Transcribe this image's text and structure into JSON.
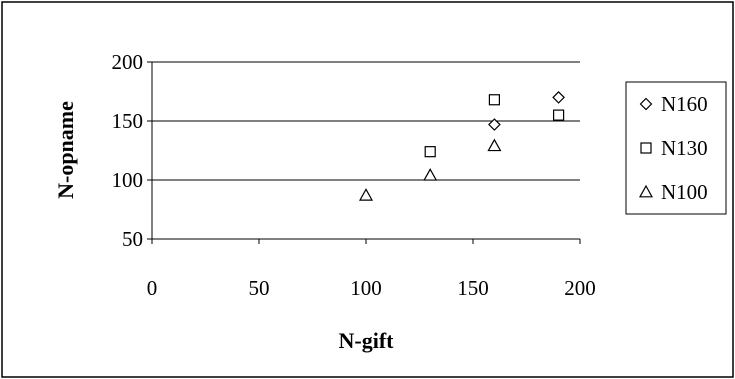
{
  "chart_data": {
    "type": "scatter",
    "title": "",
    "xlabel": "N-gift",
    "ylabel": "N-opname",
    "xlim": [
      0,
      200
    ],
    "ylim": [
      50,
      200
    ],
    "x_ticks": [
      "0",
      "50",
      "100",
      "150",
      "200"
    ],
    "y_ticks": [
      "50",
      "100",
      "150",
      "200"
    ],
    "grid": "horizontal",
    "legend_position": "right",
    "series": [
      {
        "name": "N160",
        "marker": "diamond",
        "points": [
          [
            160,
            147
          ],
          [
            190,
            170
          ]
        ]
      },
      {
        "name": "N130",
        "marker": "square",
        "points": [
          [
            130,
            124
          ],
          [
            160,
            168
          ],
          [
            190,
            155
          ]
        ]
      },
      {
        "name": "N100",
        "marker": "triangle",
        "points": [
          [
            100,
            87
          ],
          [
            130,
            104
          ],
          [
            160,
            129
          ]
        ]
      }
    ]
  }
}
